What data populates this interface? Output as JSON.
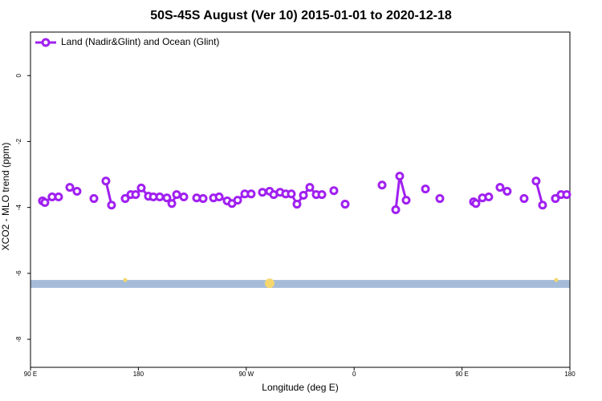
{
  "chart_data": {
    "type": "line",
    "title": "50S-45S August (Ver 10)   2015-01-01 to 2020-12-18",
    "x_label": "Longitude (deg E)",
    "y_label": "XCO2 - MLO trend (ppm)",
    "xlim": [
      90,
      540
    ],
    "ylim": [
      -8.85,
      1.32
    ],
    "xticks": [
      {
        "value": 90,
        "label": "90 E"
      },
      {
        "value": 180,
        "label": "180"
      },
      {
        "value": 270,
        "label": "90 W"
      },
      {
        "value": 360,
        "label": "0"
      },
      {
        "value": 450,
        "label": "90 E"
      },
      {
        "value": 540,
        "label": "180"
      }
    ],
    "yticks": [
      0,
      -2,
      -4,
      -6,
      -8
    ],
    "legend": "upper left",
    "series": [
      {
        "name": "Land (Nadir&Glint) and Ocean (Glint)",
        "color": "#a020f0",
        "x": [
          100,
          102,
          108,
          113.4,
          null,
          122.8,
          128.8,
          null,
          142.9,
          null,
          152.9,
          157.6,
          null,
          169,
          173.7,
          177.7,
          182.4,
          188.4,
          192.5,
          197.8,
          203.8,
          207.9,
          211.9,
          217.9,
          null,
          228.6,
          234,
          null,
          242.7,
          247.4,
          254.1,
          258.1,
          262.8,
          268.8,
          274.1,
          null,
          283.5,
          289.5,
          292.9,
          298.2,
          302.9,
          307.6,
          312.3,
          317.7,
          323,
          328.4,
          333.1,
          null,
          343.1,
          null,
          352.5,
          null,
          383.3,
          null,
          394.7,
          398,
          403.4,
          null,
          419.5,
          null,
          431.5,
          null,
          459.6,
          461.6,
          467,
          472.3,
          null,
          481.7,
          487.7,
          null,
          501.8,
          null,
          511.8,
          517.2,
          null,
          527.9,
          532.6,
          537.3
        ],
        "values": [
          -3.8,
          -3.85,
          -3.68,
          -3.68,
          null,
          -3.39,
          -3.51,
          null,
          -3.73,
          null,
          -3.2,
          -3.93,
          null,
          -3.73,
          -3.61,
          -3.61,
          -3.41,
          -3.66,
          -3.68,
          -3.68,
          -3.71,
          -3.88,
          -3.61,
          -3.68,
          null,
          -3.71,
          -3.73,
          null,
          -3.71,
          -3.68,
          -3.8,
          -3.88,
          -3.78,
          -3.59,
          -3.59,
          null,
          -3.54,
          -3.51,
          -3.61,
          -3.54,
          -3.59,
          -3.59,
          -3.9,
          -3.63,
          -3.39,
          -3.61,
          -3.61,
          null,
          -3.49,
          null,
          -3.9,
          null,
          -3.32,
          null,
          -4.07,
          -3.05,
          -3.78,
          null,
          -3.44,
          null,
          -3.73,
          null,
          -3.83,
          -3.88,
          -3.71,
          -3.68,
          null,
          -3.39,
          -3.51,
          null,
          -3.73,
          null,
          -3.2,
          -3.93,
          null,
          -3.73,
          -3.61,
          -3.61
        ]
      }
    ],
    "band": {
      "y": [
        -6.44,
        -6.2
      ],
      "color": "#a5bcd9"
    },
    "band_points": {
      "color": "#f5d76e",
      "x": [
        169,
        289.5,
        528.6
      ],
      "y": [
        -6.2,
        -6.3,
        -6.2
      ],
      "size": [
        2.5,
        6,
        2.5
      ]
    }
  }
}
